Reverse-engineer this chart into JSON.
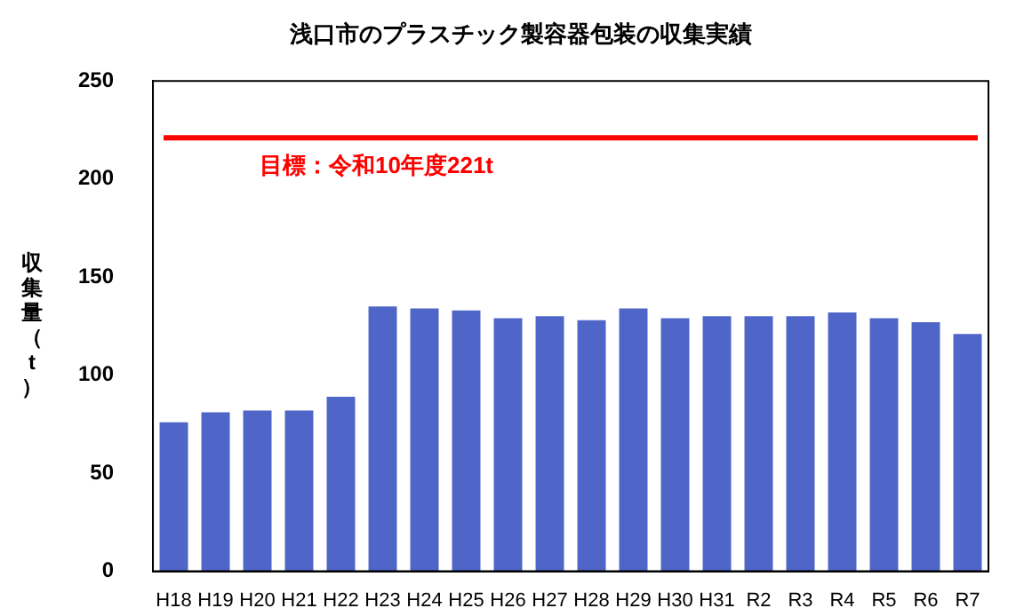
{
  "chart_data": {
    "type": "bar",
    "title": "浅口市のプラスチック製容器包装の収集実績",
    "ylabel": "収集量（t）",
    "categories": [
      "H18",
      "H19",
      "H20",
      "H21",
      "H22",
      "H23",
      "H24",
      "H25",
      "H26",
      "H27",
      "H28",
      "H29",
      "H30",
      "H31",
      "R2",
      "R3",
      "R4",
      "R5",
      "R6",
      "R7"
    ],
    "values": [
      76,
      81,
      82,
      82,
      89,
      135,
      134,
      133,
      129,
      130,
      128,
      134,
      129,
      130,
      130,
      130,
      132,
      129,
      127,
      121
    ],
    "color": "#4f66c8",
    "ylim": [
      0,
      250
    ],
    "yticks": [
      0,
      50,
      100,
      150,
      200,
      250
    ],
    "grid": false,
    "legend": false,
    "ref_lines": [
      {
        "axis": "y",
        "value": 221,
        "label": "目標：令和10年度221t",
        "color": "#ff0000"
      }
    ]
  }
}
